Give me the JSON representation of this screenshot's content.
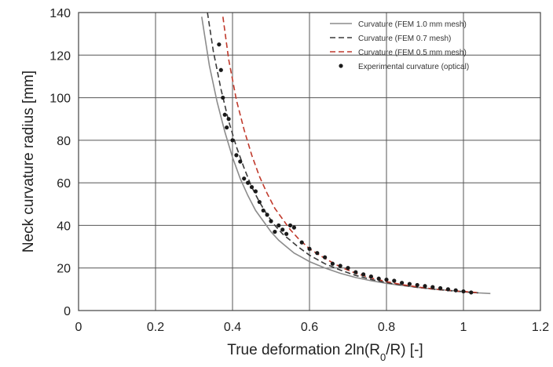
{
  "chart_data": {
    "type": "line",
    "title": "",
    "xlabel": "True deformation 2ln(R",
    "xlabel_sub": "0",
    "xlabel_tail": "/R) [-]",
    "ylabel": "Neck curvature radius [mm]",
    "xlim": [
      0,
      1.2
    ],
    "ylim": [
      0,
      140
    ],
    "xticks": [
      "0",
      "0.2",
      "0.4",
      "0.6",
      "0.8",
      "1",
      "1.2"
    ],
    "yticks": [
      "0",
      "20",
      "40",
      "60",
      "80",
      "100",
      "120",
      "140"
    ],
    "grid": true,
    "legend_position": "top-right",
    "series": [
      {
        "name": "Curvature (FEM 1.0 mm mesh)",
        "style": "solid",
        "color": "#8c8c8c",
        "x": [
          0.32,
          0.34,
          0.36,
          0.38,
          0.4,
          0.42,
          0.44,
          0.46,
          0.48,
          0.5,
          0.52,
          0.54,
          0.56,
          0.58,
          0.6,
          0.64,
          0.68,
          0.72,
          0.76,
          0.8,
          0.84,
          0.88,
          0.92,
          0.96,
          1.0,
          1.04,
          1.07
        ],
        "y": [
          138,
          115,
          98,
          84,
          72,
          62,
          54,
          47,
          42,
          37,
          33,
          30,
          27,
          25,
          23,
          20,
          17.5,
          15.5,
          14,
          12.8,
          11.8,
          10.9,
          10.1,
          9.5,
          8.9,
          8.3,
          8.0
        ]
      },
      {
        "name": "Curvature (FEM 0.7 mesh)",
        "style": "dashed",
        "color": "#3a3a3a",
        "x": [
          0.335,
          0.35,
          0.37,
          0.39,
          0.41,
          0.43,
          0.45,
          0.47,
          0.49,
          0.51,
          0.53,
          0.55,
          0.57,
          0.6,
          0.64,
          0.68,
          0.72,
          0.76,
          0.8,
          0.84,
          0.88,
          0.92,
          0.96,
          1.0,
          1.04
        ],
        "y": [
          140,
          122,
          104,
          89,
          77,
          67,
          58,
          51,
          45,
          40,
          36,
          33,
          30,
          26,
          22,
          19,
          16.5,
          14.6,
          13.1,
          11.9,
          10.9,
          10.1,
          9.4,
          8.8,
          8.3
        ]
      },
      {
        "name": "Curvature (FEM 0.5 mm mesh)",
        "style": "dashed",
        "color": "#c0392b",
        "x": [
          0.375,
          0.39,
          0.41,
          0.43,
          0.45,
          0.47,
          0.49,
          0.51,
          0.53,
          0.55,
          0.57,
          0.6,
          0.64,
          0.68,
          0.72,
          0.76,
          0.8,
          0.84,
          0.88,
          0.92,
          0.96,
          1.0,
          1.04
        ],
        "y": [
          138,
          118,
          99,
          85,
          73,
          63,
          55,
          48,
          43,
          38,
          34,
          29,
          24.5,
          20.5,
          17.5,
          15.3,
          13.6,
          12.2,
          11.1,
          10.2,
          9.5,
          8.9,
          8.4
        ]
      },
      {
        "name": "Experimental curvature (optical)",
        "style": "markers",
        "color": "#1a1a1a",
        "x": [
          0.365,
          0.37,
          0.375,
          0.38,
          0.385,
          0.39,
          0.4,
          0.41,
          0.42,
          0.43,
          0.44,
          0.45,
          0.46,
          0.47,
          0.48,
          0.49,
          0.5,
          0.51,
          0.52,
          0.53,
          0.54,
          0.55,
          0.56,
          0.58,
          0.6,
          0.62,
          0.64,
          0.66,
          0.68,
          0.7,
          0.72,
          0.74,
          0.76,
          0.78,
          0.8,
          0.82,
          0.84,
          0.86,
          0.88,
          0.9,
          0.92,
          0.94,
          0.96,
          0.98,
          1.0,
          1.02
        ],
        "y": [
          125,
          113,
          100,
          92,
          86,
          90,
          80,
          73,
          70,
          62,
          60,
          58,
          56,
          51,
          47,
          45,
          42,
          37,
          40,
          38,
          36,
          40,
          39,
          32,
          29,
          27,
          25,
          22,
          21,
          20,
          18,
          17,
          16,
          15,
          14.5,
          14,
          13,
          12.5,
          12,
          11.5,
          11,
          10.5,
          10,
          9.5,
          9,
          8.5
        ]
      }
    ],
    "legend": [
      "Curvature (FEM 1.0 mm mesh)",
      "Curvature (FEM 0.7 mesh)",
      "Curvature (FEM 0.5 mm mesh)",
      "Experimental curvature (optical)"
    ]
  }
}
